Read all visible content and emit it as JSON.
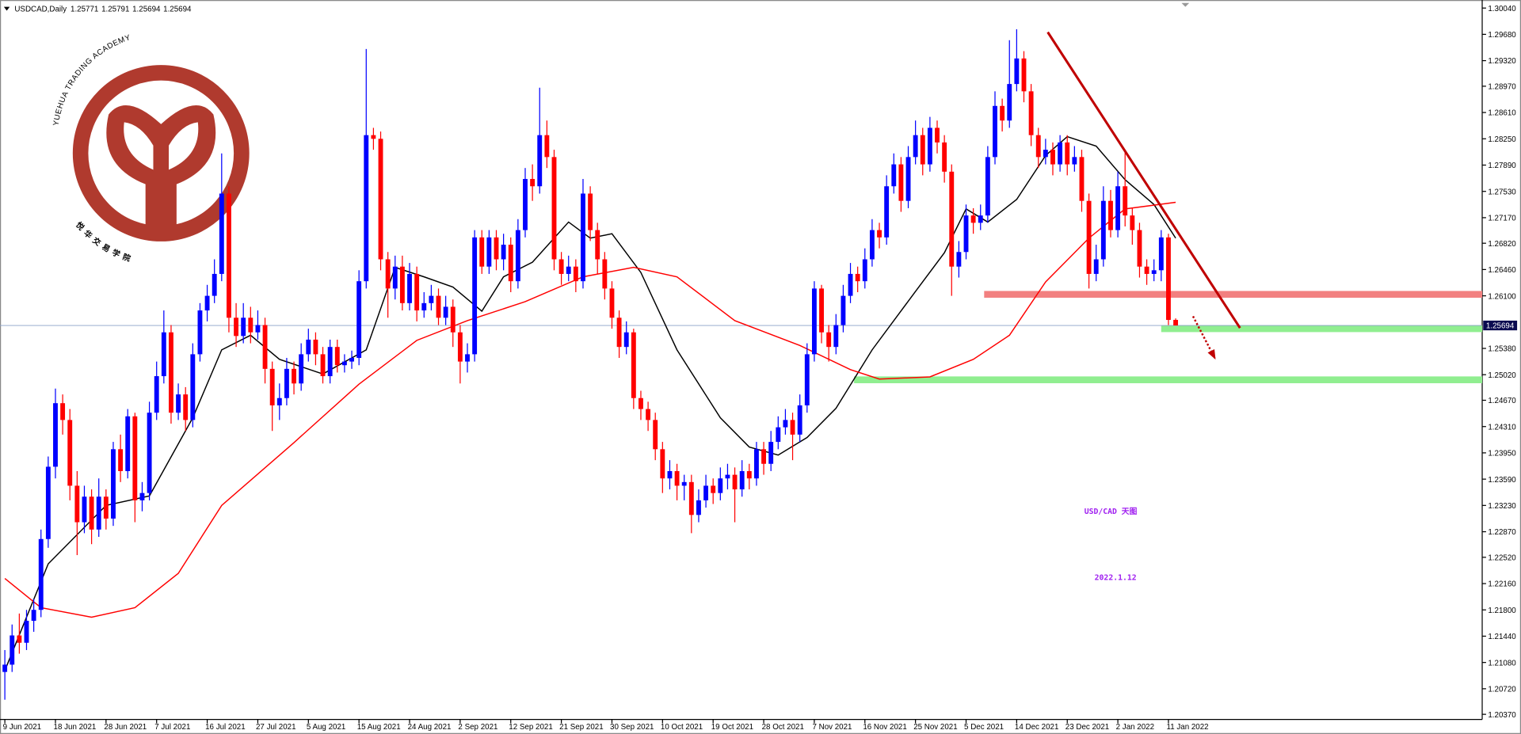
{
  "chart_data": {
    "type": "candlestick",
    "symbol": "USDCAD,Daily",
    "up_color": "#0000ff",
    "down_color": "#ff0000",
    "ylim": [
      1.203,
      1.3015
    ],
    "yticks": [
      {
        "value": 1.3004,
        "label": "1.30040"
      },
      {
        "value": 1.2968,
        "label": "1.29680"
      },
      {
        "value": 1.2932,
        "label": "1.29320"
      },
      {
        "value": 1.2897,
        "label": "1.28970"
      },
      {
        "value": 1.2861,
        "label": "1.28610"
      },
      {
        "value": 1.2825,
        "label": "1.28250"
      },
      {
        "value": 1.2789,
        "label": "1.27890"
      },
      {
        "value": 1.2753,
        "label": "1.27530"
      },
      {
        "value": 1.2717,
        "label": "1.27170"
      },
      {
        "value": 1.2682,
        "label": "1.26820"
      },
      {
        "value": 1.2646,
        "label": "1.26460"
      },
      {
        "value": 1.261,
        "label": "1.26100"
      },
      {
        "value": 1.2538,
        "label": "1.25380"
      },
      {
        "value": 1.2502,
        "label": "1.25020"
      },
      {
        "value": 1.2467,
        "label": "1.24670"
      },
      {
        "value": 1.2431,
        "label": "1.24310"
      },
      {
        "value": 1.2395,
        "label": "1.23950"
      },
      {
        "value": 1.2359,
        "label": "1.23590"
      },
      {
        "value": 1.2323,
        "label": "1.23230"
      },
      {
        "value": 1.2287,
        "label": "1.22870"
      },
      {
        "value": 1.2252,
        "label": "1.22520"
      },
      {
        "value": 1.2216,
        "label": "1.22160"
      },
      {
        "value": 1.218,
        "label": "1.21800"
      },
      {
        "value": 1.2144,
        "label": "1.21440"
      },
      {
        "value": 1.2108,
        "label": "1.21080"
      },
      {
        "value": 1.2072,
        "label": "1.20720"
      },
      {
        "value": 1.2037,
        "label": "1.20370"
      }
    ],
    "categories": [
      "9 Jun 2021",
      null,
      null,
      null,
      null,
      null,
      null,
      "18 Jun 2021",
      null,
      null,
      null,
      null,
      null,
      null,
      "28 Jun 2021",
      null,
      null,
      null,
      null,
      null,
      null,
      "7 Jul 2021",
      null,
      null,
      null,
      null,
      null,
      null,
      "16 Jul 2021",
      null,
      null,
      null,
      null,
      null,
      null,
      "27 Jul 2021",
      null,
      null,
      null,
      null,
      null,
      null,
      "5 Aug 2021",
      null,
      null,
      null,
      null,
      null,
      null,
      "15 Aug 2021",
      null,
      null,
      null,
      null,
      null,
      null,
      "24 Aug 2021",
      null,
      null,
      null,
      null,
      null,
      null,
      "2 Sep 2021",
      null,
      null,
      null,
      null,
      null,
      null,
      "12 Sep 2021",
      null,
      null,
      null,
      null,
      null,
      null,
      "21 Sep 2021",
      null,
      null,
      null,
      null,
      null,
      null,
      "30 Sep 2021",
      null,
      null,
      null,
      null,
      null,
      null,
      "10 Oct 2021",
      null,
      null,
      null,
      null,
      null,
      null,
      "19 Oct 2021",
      null,
      null,
      null,
      null,
      null,
      null,
      "28 Oct 2021",
      null,
      null,
      null,
      null,
      null,
      null,
      "7 Nov 2021",
      null,
      null,
      null,
      null,
      null,
      null,
      "16 Nov 2021",
      null,
      null,
      null,
      null,
      null,
      null,
      "25 Nov 2021",
      null,
      null,
      null,
      null,
      null,
      null,
      "5 Dec 2021",
      null,
      null,
      null,
      null,
      null,
      null,
      "14 Dec 2021",
      null,
      null,
      null,
      null,
      null,
      null,
      "23 Dec 2021",
      null,
      null,
      null,
      null,
      null,
      null,
      "2 Jan 2022",
      null,
      null,
      null,
      null,
      null,
      null,
      "11 Jan 2022",
      null
    ],
    "open": [
      1.2095,
      1.2105,
      1.2145,
      1.2135,
      1.2165,
      1.218,
      1.2277,
      1.2376,
      1.2463,
      1.244,
      1.235,
      1.23,
      1.2335,
      1.229,
      1.2335,
      1.2305,
      1.24,
      1.237,
      1.2445,
      1.233,
      1.234,
      1.245,
      1.25,
      1.256,
      1.245,
      1.2475,
      1.244,
      1.253,
      1.259,
      1.261,
      1.264,
      1.275,
      1.258,
      1.2555,
      1.258,
      1.256,
      1.257,
      1.251,
      1.246,
      1.247,
      1.251,
      1.249,
      1.253,
      1.255,
      1.253,
      1.25,
      1.254,
      1.2515,
      1.252,
      1.2525,
      1.263,
      1.283,
      1.2825,
      1.266,
      1.262,
      1.265,
      1.26,
      1.264,
      1.259,
      1.26,
      1.261,
      1.258,
      1.2595,
      1.256,
      1.252,
      1.253,
      1.269,
      1.265,
      1.269,
      1.266,
      1.268,
      1.263,
      1.27,
      1.277,
      1.276,
      1.283,
      1.28,
      1.266,
      1.264,
      1.265,
      1.263,
      1.275,
      1.27,
      1.266,
      1.262,
      1.258,
      1.254,
      1.256,
      1.247,
      1.2455,
      1.244,
      1.24,
      1.236,
      1.237,
      1.235,
      1.2355,
      1.231,
      1.233,
      1.235,
      1.234,
      1.236,
      1.2365,
      1.2345,
      1.237,
      1.236,
      1.24,
      1.238,
      1.241,
      1.243,
      1.244,
      1.242,
      1.246,
      1.253,
      1.262,
      1.256,
      1.254,
      1.257,
      1.261,
      1.264,
      1.263,
      1.266,
      1.27,
      1.269,
      1.276,
      1.279,
      1.274,
      1.28,
      1.283,
      1.279,
      1.284,
      1.282,
      1.278,
      1.265,
      1.267,
      1.272,
      1.271,
      1.272,
      1.28,
      1.287,
      1.285,
      1.29,
      1.2935,
      1.289,
      1.283,
      1.28,
      1.281,
      1.279,
      1.282,
      1.279,
      1.28,
      1.274,
      1.264,
      1.266,
      1.274,
      1.27,
      1.276,
      1.272,
      1.27,
      1.265,
      1.264,
      1.2645,
      1.269,
      1.25771
    ],
    "high": [
      1.2125,
      1.216,
      1.2175,
      1.218,
      1.2195,
      1.229,
      1.239,
      1.2483,
      1.2475,
      1.2455,
      1.237,
      1.235,
      1.2345,
      1.236,
      1.2345,
      1.241,
      1.242,
      1.2455,
      1.245,
      1.2355,
      1.2465,
      1.252,
      1.259,
      1.257,
      1.249,
      1.2485,
      1.2545,
      1.26,
      1.2625,
      1.266,
      1.2805,
      1.276,
      1.26,
      1.26,
      1.2595,
      1.259,
      1.258,
      1.252,
      1.249,
      1.2525,
      1.252,
      1.2545,
      1.2565,
      1.256,
      1.254,
      1.255,
      1.255,
      1.253,
      1.2535,
      1.2645,
      1.2948,
      1.284,
      1.2835,
      1.267,
      1.2665,
      1.2665,
      1.2655,
      1.265,
      1.2615,
      1.2625,
      1.262,
      1.261,
      1.2605,
      1.257,
      1.2545,
      1.27,
      1.27,
      1.27,
      1.27,
      1.2695,
      1.269,
      1.2715,
      1.2785,
      1.279,
      1.2895,
      1.285,
      1.281,
      1.267,
      1.2665,
      1.266,
      1.277,
      1.276,
      1.271,
      1.267,
      1.263,
      1.259,
      1.2575,
      1.2565,
      1.248,
      1.2465,
      1.245,
      1.241,
      1.2385,
      1.238,
      1.2365,
      1.2365,
      1.2345,
      1.2365,
      1.236,
      1.2375,
      1.238,
      1.2375,
      1.2385,
      1.238,
      1.241,
      1.241,
      1.2425,
      1.2445,
      1.2455,
      1.245,
      1.2475,
      1.2545,
      1.263,
      1.2625,
      1.257,
      1.2585,
      1.2625,
      1.2655,
      1.265,
      1.2675,
      1.2715,
      1.271,
      1.2775,
      1.2805,
      1.28,
      1.2815,
      1.285,
      1.284,
      1.2855,
      1.285,
      1.283,
      1.279,
      1.2685,
      1.2735,
      1.273,
      1.2735,
      1.2815,
      1.289,
      1.288,
      1.296,
      1.2975,
      1.2945,
      1.29,
      1.284,
      1.2825,
      1.282,
      1.283,
      1.283,
      1.2815,
      1.281,
      1.275,
      1.268,
      1.276,
      1.2755,
      1.278,
      1.281,
      1.273,
      1.271,
      1.266,
      1.266,
      1.27,
      1.2695,
      1.25791
    ],
    "low": [
      1.2057,
      1.2095,
      1.212,
      1.2125,
      1.215,
      1.217,
      1.2265,
      1.236,
      1.242,
      1.233,
      1.2255,
      1.2285,
      1.227,
      1.228,
      1.229,
      1.2295,
      1.2355,
      1.236,
      1.23,
      1.2315,
      1.233,
      1.244,
      1.249,
      1.2435,
      1.244,
      1.2425,
      1.243,
      1.252,
      1.2575,
      1.26,
      1.263,
      1.256,
      1.254,
      1.2545,
      1.2545,
      1.255,
      1.249,
      1.2425,
      1.244,
      1.246,
      1.2475,
      1.248,
      1.252,
      1.2515,
      1.249,
      1.249,
      1.2505,
      1.2505,
      1.251,
      1.2515,
      1.262,
      1.281,
      1.2645,
      1.258,
      1.2605,
      1.259,
      1.259,
      1.2575,
      1.258,
      1.259,
      1.257,
      1.257,
      1.254,
      1.249,
      1.2505,
      1.252,
      1.264,
      1.264,
      1.2645,
      1.2645,
      1.2615,
      1.262,
      1.269,
      1.274,
      1.275,
      1.2785,
      1.2645,
      1.2625,
      1.263,
      1.2615,
      1.262,
      1.2685,
      1.264,
      1.2605,
      1.2565,
      1.2525,
      1.253,
      1.2455,
      1.244,
      1.2425,
      1.2385,
      1.234,
      1.2345,
      1.233,
      1.233,
      1.2285,
      1.23,
      1.232,
      1.2325,
      1.233,
      1.2345,
      1.23,
      1.2335,
      1.2345,
      1.235,
      1.2365,
      1.237,
      1.24,
      1.242,
      1.2385,
      1.241,
      1.245,
      1.252,
      1.2545,
      1.252,
      1.253,
      1.256,
      1.26,
      1.2615,
      1.262,
      1.265,
      1.2675,
      1.268,
      1.275,
      1.2725,
      1.273,
      1.279,
      1.2775,
      1.278,
      1.2805,
      1.2765,
      1.261,
      1.2635,
      1.266,
      1.2695,
      1.27,
      1.271,
      1.279,
      1.2835,
      1.284,
      1.289,
      1.2875,
      1.2815,
      1.2785,
      1.279,
      1.2775,
      1.278,
      1.2775,
      1.278,
      1.2725,
      1.262,
      1.263,
      1.265,
      1.269,
      1.269,
      1.2705,
      1.268,
      1.2635,
      1.2625,
      1.263,
      1.263,
      1.257,
      1.25694
    ],
    "close": [
      1.2105,
      1.2145,
      1.2135,
      1.2165,
      1.218,
      1.2277,
      1.2376,
      1.2463,
      1.244,
      1.235,
      1.23,
      1.2335,
      1.229,
      1.2335,
      1.2305,
      1.24,
      1.237,
      1.2445,
      1.233,
      1.234,
      1.245,
      1.25,
      1.256,
      1.245,
      1.2475,
      1.244,
      1.253,
      1.259,
      1.261,
      1.264,
      1.275,
      1.258,
      1.2555,
      1.258,
      1.256,
      1.257,
      1.251,
      1.246,
      1.247,
      1.251,
      1.249,
      1.253,
      1.255,
      1.253,
      1.25,
      1.254,
      1.2515,
      1.252,
      1.2525,
      1.263,
      1.283,
      1.2825,
      1.266,
      1.262,
      1.265,
      1.26,
      1.264,
      1.259,
      1.26,
      1.261,
      1.258,
      1.2595,
      1.256,
      1.252,
      1.253,
      1.269,
      1.265,
      1.269,
      1.266,
      1.268,
      1.263,
      1.27,
      1.277,
      1.276,
      1.283,
      1.28,
      1.266,
      1.264,
      1.265,
      1.263,
      1.275,
      1.27,
      1.266,
      1.262,
      1.258,
      1.254,
      1.256,
      1.247,
      1.2455,
      1.244,
      1.24,
      1.236,
      1.237,
      1.235,
      1.2355,
      1.231,
      1.233,
      1.235,
      1.234,
      1.236,
      1.2365,
      1.2345,
      1.237,
      1.236,
      1.24,
      1.238,
      1.241,
      1.243,
      1.244,
      1.242,
      1.246,
      1.253,
      1.262,
      1.256,
      1.254,
      1.257,
      1.261,
      1.264,
      1.263,
      1.266,
      1.27,
      1.269,
      1.276,
      1.279,
      1.274,
      1.28,
      1.283,
      1.279,
      1.284,
      1.282,
      1.278,
      1.265,
      1.267,
      1.272,
      1.271,
      1.272,
      1.28,
      1.287,
      1.285,
      1.29,
      1.2935,
      1.289,
      1.283,
      1.28,
      1.281,
      1.279,
      1.282,
      1.279,
      1.28,
      1.274,
      1.264,
      1.266,
      1.274,
      1.27,
      1.276,
      1.272,
      1.27,
      1.265,
      1.264,
      1.2645,
      1.269,
      1.2577,
      1.25694
    ],
    "moving_averages": [
      {
        "color": "#000000",
        "x": [
          0,
          6,
          14,
          20,
          26,
          30,
          34,
          38,
          44,
          50,
          54,
          58,
          62,
          66,
          69,
          73,
          78,
          81,
          84,
          88,
          93,
          99,
          103,
          107,
          111,
          115,
          120,
          126,
          130,
          133,
          136,
          140,
          144,
          147,
          151,
          155,
          159,
          162
        ],
        "values": [
          1.2097,
          1.2243,
          1.2323,
          1.2336,
          1.2443,
          1.2536,
          1.2556,
          1.2523,
          1.2503,
          1.2536,
          1.2649,
          1.2636,
          1.2622,
          1.2589,
          1.2636,
          1.2656,
          1.2711,
          1.2689,
          1.2695,
          1.2642,
          1.2536,
          1.2443,
          1.2403,
          1.2392,
          1.2416,
          1.2456,
          1.2536,
          1.2616,
          1.2669,
          1.2729,
          1.2711,
          1.2742,
          1.2802,
          1.2828,
          1.2815,
          1.2769,
          1.2735,
          1.2689
        ]
      },
      {
        "color": "#ff0000",
        "x": [
          0,
          5,
          12,
          18,
          24,
          30,
          40,
          49,
          57,
          64,
          72,
          80,
          87,
          93,
          101,
          110,
          117,
          121,
          128,
          134,
          139,
          144,
          150,
          155,
          162
        ],
        "values": [
          1.2223,
          1.2183,
          1.217,
          1.2183,
          1.223,
          1.2323,
          1.2409,
          1.2489,
          1.2549,
          1.2576,
          1.2602,
          1.2636,
          1.2649,
          1.2636,
          1.2576,
          1.2542,
          1.2509,
          1.2496,
          1.2499,
          1.2523,
          1.2556,
          1.2629,
          1.2689,
          1.2729,
          1.2738
        ]
      }
    ],
    "levels": [
      {
        "value": 1.2612,
        "start": 135.5,
        "color": "#f28080"
      },
      {
        "value": 1.2565,
        "start": 160,
        "color": "#90ee90"
      },
      {
        "value": 1.2495,
        "start": 117.5,
        "color": "#90ee90"
      }
    ],
    "trendline": {
      "x": [
        144.3,
        170.9
      ],
      "y": [
        1.2971,
        1.2566
      ],
      "color": "#c00000"
    },
    "arrow": {
      "x": [
        164.4,
        167.4
      ],
      "y": [
        1.2582,
        1.2525
      ],
      "color": "#c00000"
    },
    "annotations": [
      "USD/CAD 天图",
      "2022.1.12"
    ],
    "watermark": {
      "arc_text": "YUEHUA TRADING ACADEMY",
      "text": "悦华交易学院"
    }
  }
}
